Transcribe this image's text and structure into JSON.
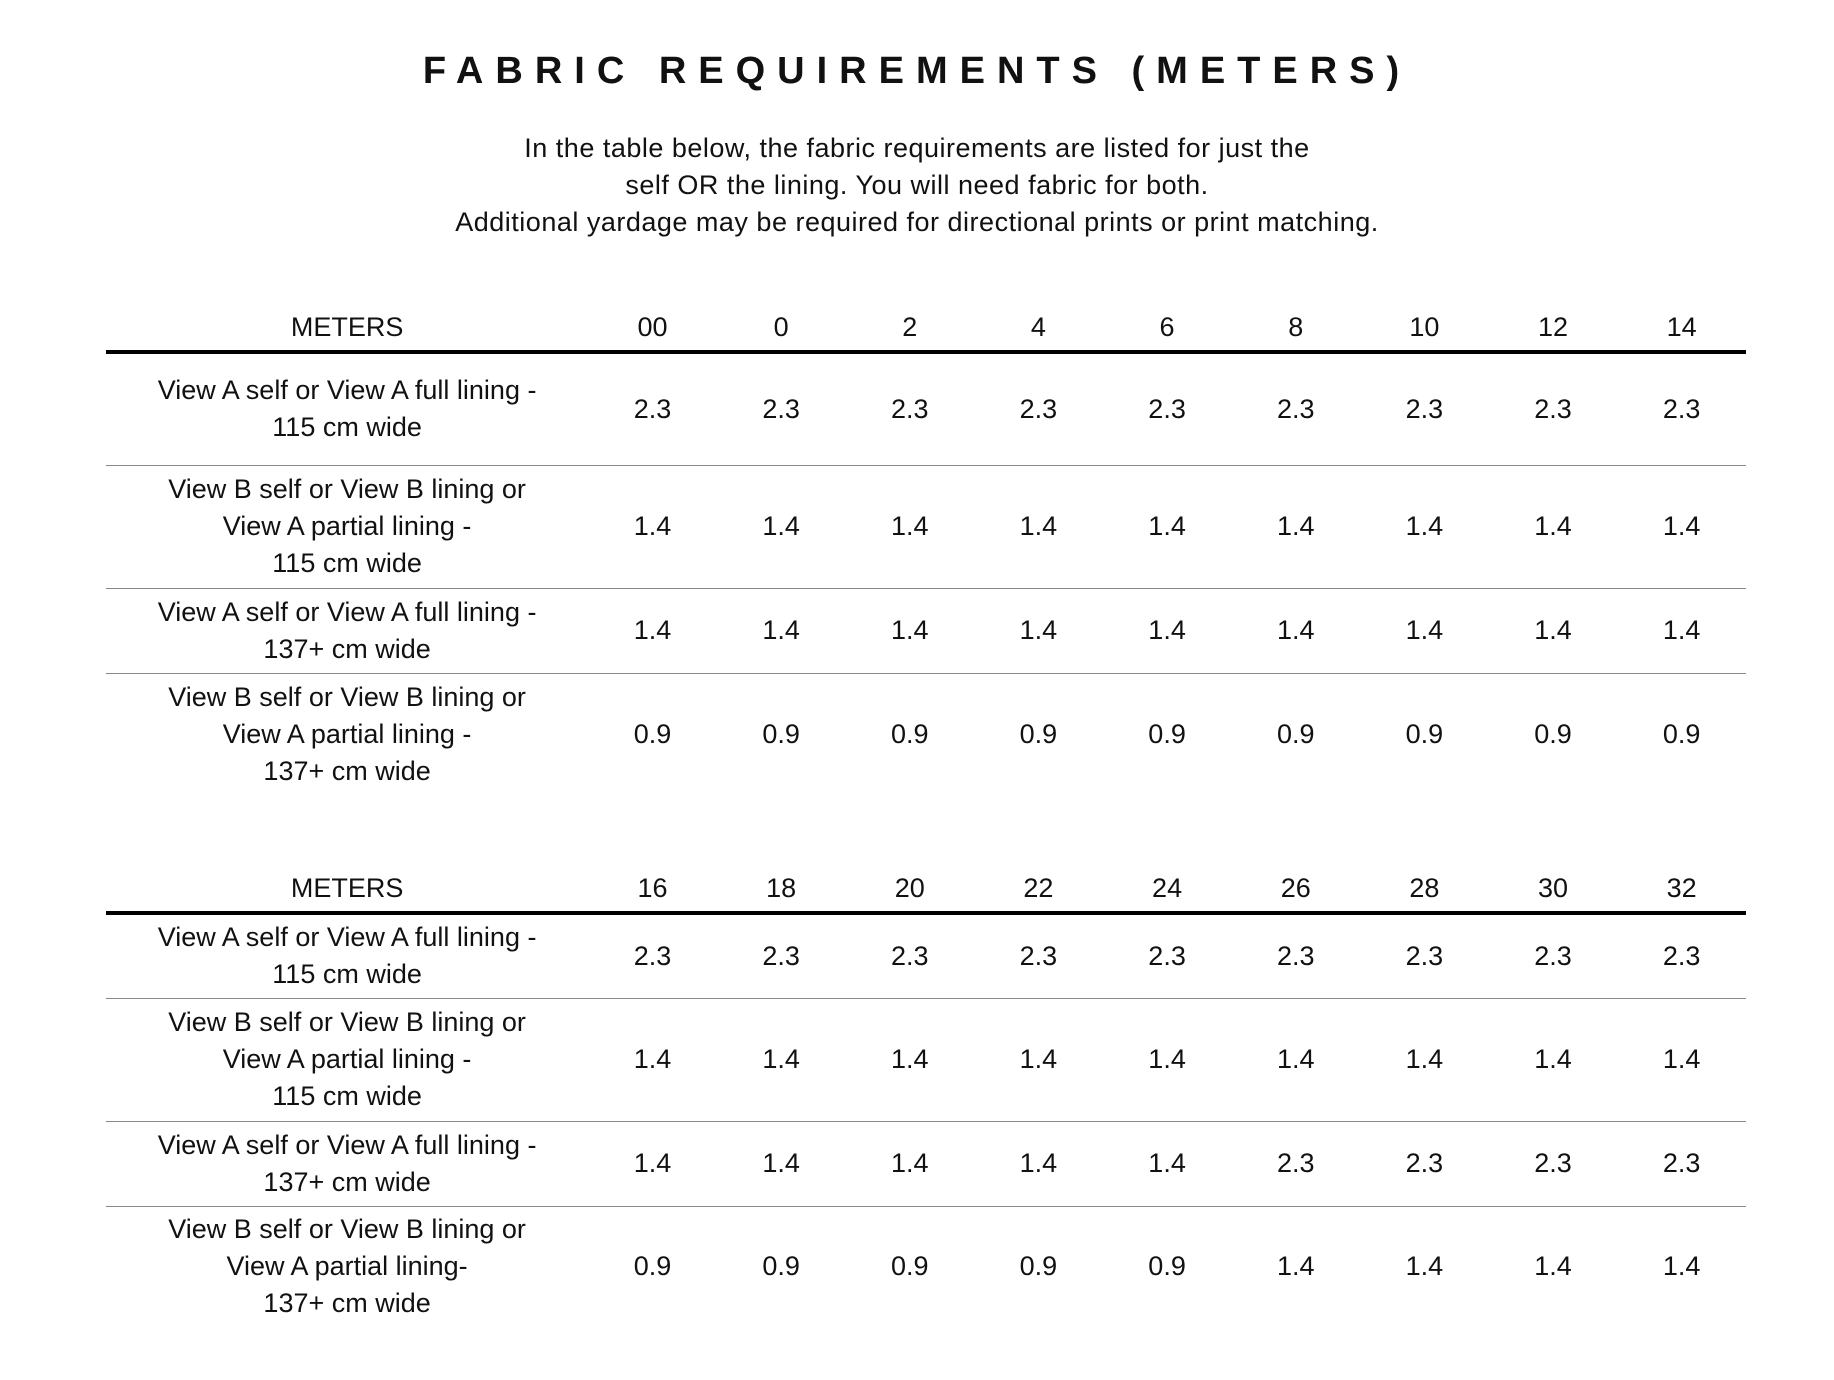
{
  "title": "FABRIC REQUIREMENTS (METERS)",
  "intro": [
    "In the table below, the fabric requirements are listed for just the",
    "self OR the lining. You will need fabric for both.",
    "Additional yardage may be required for directional prints or print matching."
  ],
  "tables": [
    {
      "header_label": "METERS",
      "sizes": [
        "00",
        "0",
        "2",
        "4",
        "6",
        "8",
        "10",
        "12",
        "14"
      ],
      "rows": [
        {
          "label": [
            "View A self or View A full lining -",
            "115 cm wide"
          ],
          "values": [
            "2.3",
            "2.3",
            "2.3",
            "2.3",
            "2.3",
            "2.3",
            "2.3",
            "2.3",
            "2.3"
          ]
        },
        {
          "label": [
            "View B self or View B lining or",
            "View A partial lining -",
            "115 cm wide"
          ],
          "values": [
            "1.4",
            "1.4",
            "1.4",
            "1.4",
            "1.4",
            "1.4",
            "1.4",
            "1.4",
            "1.4"
          ]
        },
        {
          "label": [
            "View A self or View A full lining -",
            "137+ cm wide"
          ],
          "values": [
            "1.4",
            "1.4",
            "1.4",
            "1.4",
            "1.4",
            "1.4",
            "1.4",
            "1.4",
            "1.4"
          ]
        },
        {
          "label": [
            "View B self or View B lining or",
            "View A partial lining -",
            "137+ cm wide"
          ],
          "values": [
            "0.9",
            "0.9",
            "0.9",
            "0.9",
            "0.9",
            "0.9",
            "0.9",
            "0.9",
            "0.9"
          ]
        }
      ]
    },
    {
      "header_label": "METERS",
      "sizes": [
        "16",
        "18",
        "20",
        "22",
        "24",
        "26",
        "28",
        "30",
        "32"
      ],
      "rows": [
        {
          "label": [
            "View A self or View A full lining -",
            "115 cm wide"
          ],
          "values": [
            "2.3",
            "2.3",
            "2.3",
            "2.3",
            "2.3",
            "2.3",
            "2.3",
            "2.3",
            "2.3"
          ]
        },
        {
          "label": [
            "View B self or View B lining or",
            "View A partial lining -",
            "115 cm wide"
          ],
          "values": [
            "1.4",
            "1.4",
            "1.4",
            "1.4",
            "1.4",
            "1.4",
            "1.4",
            "1.4",
            "1.4"
          ]
        },
        {
          "label": [
            "View A self or View A full lining -",
            "137+ cm wide"
          ],
          "values": [
            "1.4",
            "1.4",
            "1.4",
            "1.4",
            "1.4",
            "2.3",
            "2.3",
            "2.3",
            "2.3"
          ]
        },
        {
          "label": [
            "View B self or View B lining or",
            "View A partial lining-",
            "137+ cm wide"
          ],
          "values": [
            "0.9",
            "0.9",
            "0.9",
            "0.9",
            "0.9",
            "1.4",
            "1.4",
            "1.4",
            "1.4"
          ]
        }
      ]
    }
  ]
}
